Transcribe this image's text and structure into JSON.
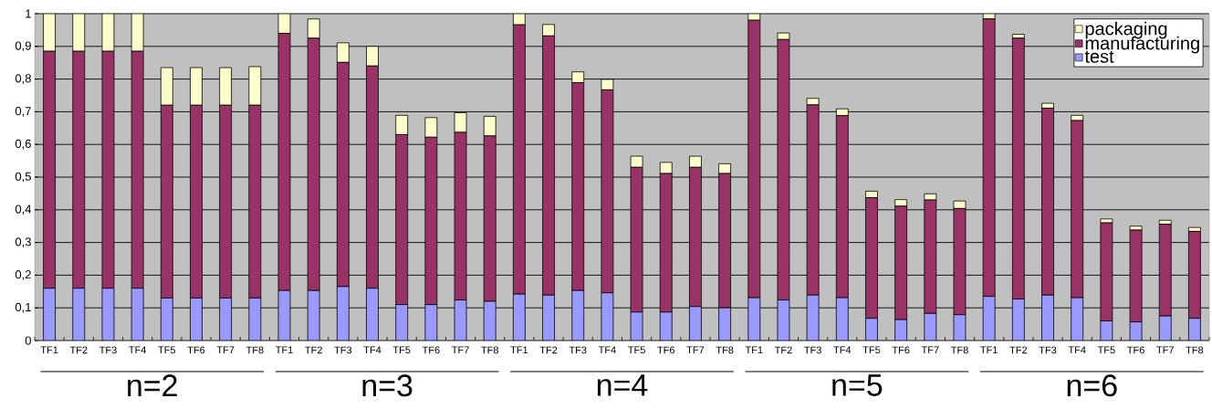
{
  "chart_data": {
    "type": "bar",
    "stacked": true,
    "categories": [
      "TF1",
      "TF2",
      "TF3",
      "TF4",
      "TF5",
      "TF6",
      "TF7",
      "TF8",
      "TF1",
      "TF2",
      "TF3",
      "TF4",
      "TF5",
      "TF6",
      "TF7",
      "TF8",
      "TF1",
      "TF2",
      "TF3",
      "TF4",
      "TF5",
      "TF6",
      "TF7",
      "TF8",
      "TF1",
      "TF2",
      "TF3",
      "TF4",
      "TF5",
      "TF6",
      "TF7",
      "TF8",
      "TF1",
      "TF2",
      "TF3",
      "TF4",
      "TF5",
      "TF6",
      "TF7",
      "TF8"
    ],
    "series": [
      {
        "name": "test",
        "color": "#9999ff",
        "values": [
          0.16,
          0.16,
          0.16,
          0.16,
          0.13,
          0.13,
          0.13,
          0.13,
          0.153,
          0.153,
          0.165,
          0.16,
          0.11,
          0.11,
          0.124,
          0.12,
          0.142,
          0.139,
          0.153,
          0.146,
          0.087,
          0.087,
          0.104,
          0.1,
          0.131,
          0.124,
          0.139,
          0.131,
          0.068,
          0.064,
          0.083,
          0.079,
          0.135,
          0.127,
          0.139,
          0.131,
          0.06,
          0.057,
          0.075,
          0.068
        ]
      },
      {
        "name": "manufacturing",
        "color": "#993366",
        "values": [
          0.725,
          0.725,
          0.725,
          0.725,
          0.59,
          0.59,
          0.59,
          0.59,
          0.787,
          0.772,
          0.686,
          0.68,
          0.52,
          0.512,
          0.513,
          0.506,
          0.824,
          0.793,
          0.636,
          0.621,
          0.443,
          0.424,
          0.426,
          0.411,
          0.849,
          0.797,
          0.582,
          0.557,
          0.369,
          0.347,
          0.347,
          0.325,
          0.849,
          0.798,
          0.572,
          0.542,
          0.3,
          0.281,
          0.281,
          0.266
        ]
      },
      {
        "name": "packaging",
        "color": "#ffffcc",
        "values": [
          0.115,
          0.115,
          0.115,
          0.115,
          0.115,
          0.115,
          0.115,
          0.118,
          0.06,
          0.059,
          0.06,
          0.06,
          0.059,
          0.06,
          0.06,
          0.06,
          0.034,
          0.035,
          0.033,
          0.032,
          0.034,
          0.034,
          0.034,
          0.03,
          0.02,
          0.02,
          0.02,
          0.021,
          0.02,
          0.02,
          0.019,
          0.023,
          0.016,
          0.012,
          0.015,
          0.016,
          0.012,
          0.012,
          0.012,
          0.012
        ]
      }
    ],
    "ylim": [
      0,
      1
    ],
    "yticks": [
      0,
      {
        "value": 0.1,
        "label": "0,1"
      },
      {
        "value": 0.2,
        "label": "0,2"
      },
      {
        "value": 0.3,
        "label": "0,3"
      },
      {
        "value": 0.4,
        "label": "0,4"
      },
      {
        "value": 0.5,
        "label": "0,5"
      },
      {
        "value": 0.6,
        "label": "0,6"
      },
      {
        "value": 0.7,
        "label": "0,7"
      },
      {
        "value": 0.8,
        "label": "0,8"
      },
      {
        "value": 0.9,
        "label": "0,9"
      },
      1
    ],
    "grid": "y",
    "legend": "top right",
    "annotations": [
      "n=2",
      "n=3",
      "n=4",
      "n=5",
      "n=6"
    ]
  }
}
